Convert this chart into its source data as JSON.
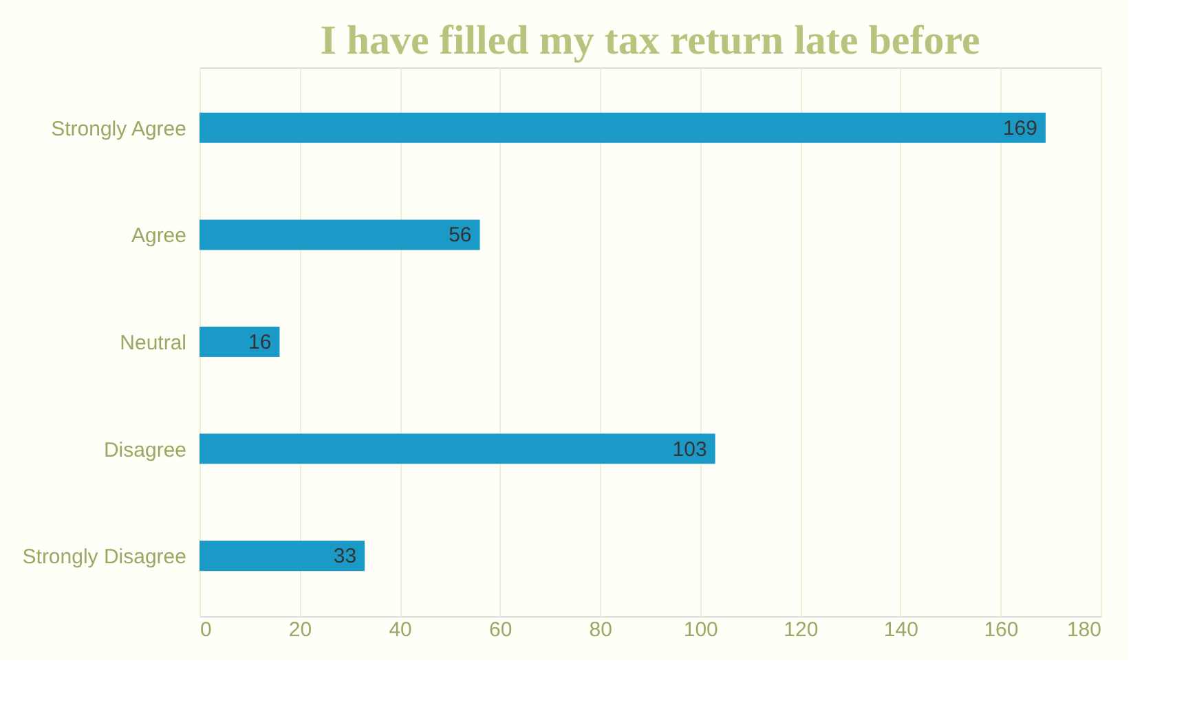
{
  "chart_data": {
    "type": "bar",
    "orientation": "horizontal",
    "title": "I have filled my tax return late before",
    "categories": [
      "Strongly Agree",
      "Agree",
      "Neutral",
      "Disagree",
      "Strongly Disagree"
    ],
    "values": [
      169,
      56,
      16,
      103,
      33
    ],
    "color": "#1b9ac8",
    "xlim": [
      0,
      180
    ],
    "xticks": [
      0,
      20,
      40,
      60,
      80,
      100,
      120,
      140,
      160,
      180
    ],
    "grid": "x",
    "data_labels": true
  }
}
